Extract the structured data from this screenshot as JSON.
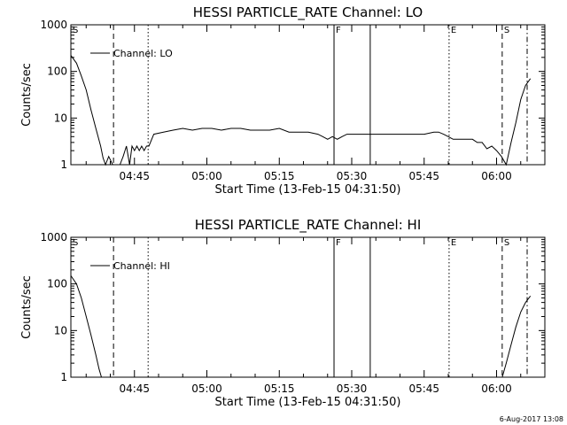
{
  "footer_stamp": "6-Aug-2017 13:08",
  "chart_data": [
    {
      "type": "line",
      "title": "HESSI PARTICLE_RATE Channel: LO",
      "xlabel": "Start Time (13-Feb-15 04:31:50)",
      "ylabel": "Counts/sec",
      "yscale": "log",
      "ylim": [
        1,
        1000
      ],
      "xlim": [
        "04:31:50",
        "06:10:00"
      ],
      "x_ticks": [
        "04:45",
        "05:00",
        "05:15",
        "05:30",
        "05:45",
        "06:00"
      ],
      "y_ticks": [
        "1",
        "10",
        "100",
        "1000"
      ],
      "legend": {
        "label": "Channel: LO",
        "position": "top-left"
      },
      "series": [
        {
          "name": "Channel: LO",
          "x": [
            "04:31:50",
            "04:33:00",
            "04:34:00",
            "04:35:00",
            "04:36:00",
            "04:37:00",
            "04:38:00",
            "04:38:30",
            "04:39:00",
            "04:39:40",
            "04:40:30",
            "04:41:30",
            "04:42:00",
            "04:42:40",
            "04:43:20",
            "04:44:00",
            "04:44:30",
            "04:45:00",
            "04:45:30",
            "04:46:00",
            "04:46:30",
            "04:47:00",
            "04:47:30",
            "04:48:00",
            "04:49:00",
            "04:51:00",
            "04:53:00",
            "04:55:00",
            "04:57:00",
            "04:59:00",
            "05:01:00",
            "05:03:00",
            "05:05:00",
            "05:07:00",
            "05:09:00",
            "05:11:00",
            "05:13:00",
            "05:15:00",
            "05:17:00",
            "05:19:00",
            "05:21:00",
            "05:23:00",
            "05:24:00",
            "05:25:00",
            "05:26:00",
            "05:27:00",
            "05:28:00",
            "05:29:00",
            "05:31:00",
            "05:33:00",
            "05:35:00",
            "05:37:00",
            "05:39:00",
            "05:41:00",
            "05:43:00",
            "05:45:00",
            "05:47:00",
            "05:48:00",
            "05:49:00",
            "05:50:00",
            "05:51:00",
            "05:52:00",
            "05:53:00",
            "05:54:00",
            "05:55:00",
            "05:56:00",
            "05:57:00",
            "05:58:00",
            "05:59:00",
            "06:00:00",
            "06:01:00",
            "06:02:00",
            "06:03:00",
            "06:04:00",
            "06:05:00",
            "06:06:00",
            "06:07:00"
          ],
          "y": [
            220,
            150,
            80,
            40,
            15,
            6,
            2.5,
            1.4,
            1,
            1.5,
            1,
            1,
            1,
            1.5,
            2.5,
            1,
            2.5,
            2,
            2.5,
            2,
            2.5,
            2,
            2.5,
            2.5,
            4.5,
            5,
            5.5,
            6,
            5.5,
            6,
            6,
            5.5,
            6,
            6,
            5.5,
            5.5,
            5.5,
            6,
            5,
            5,
            5,
            4.5,
            4,
            3.5,
            4,
            3.5,
            4,
            4.5,
            4.5,
            4.5,
            4.5,
            4.5,
            4.5,
            4.5,
            4.5,
            4.5,
            5,
            5,
            4.5,
            4,
            3.5,
            3.5,
            3.5,
            3.5,
            3.5,
            3,
            3,
            2.2,
            2.5,
            2,
            1.5,
            1,
            3,
            8,
            25,
            50,
            70
          ]
        }
      ],
      "markers": [
        {
          "label": "S",
          "at": "04:31:50",
          "style": "label"
        },
        {
          "label": "",
          "at": "04:40:40",
          "style": "dashed"
        },
        {
          "label": "",
          "at": "04:47:50",
          "style": "dotted"
        },
        {
          "label": "F",
          "at": "05:26:20",
          "style": "solid"
        },
        {
          "label": "",
          "at": "05:33:50",
          "style": "solid"
        },
        {
          "label": "E",
          "at": "05:50:10",
          "style": "dotted"
        },
        {
          "label": "S",
          "at": "06:01:10",
          "style": "dashed"
        },
        {
          "label": "",
          "at": "06:06:20",
          "style": "dashdot"
        }
      ]
    },
    {
      "type": "line",
      "title": "HESSI PARTICLE_RATE Channel: HI",
      "xlabel": "Start Time (13-Feb-15 04:31:50)",
      "ylabel": "Counts/sec",
      "yscale": "log",
      "ylim": [
        1,
        1000
      ],
      "xlim": [
        "04:31:50",
        "06:10:00"
      ],
      "x_ticks": [
        "04:45",
        "05:00",
        "05:15",
        "05:30",
        "05:45",
        "06:00"
      ],
      "y_ticks": [
        "1",
        "10",
        "100",
        "1000"
      ],
      "legend": {
        "label": "Channel: HI",
        "position": "top-left"
      },
      "series": [
        {
          "name": "Channel: HI",
          "x": [
            "04:31:50",
            "04:33:00",
            "04:34:00",
            "04:35:00",
            "04:36:00",
            "04:37:00",
            "04:37:40",
            "04:38:10",
            "06:01:10",
            "06:02:00",
            "06:03:00",
            "06:04:00",
            "06:05:00",
            "06:06:00",
            "06:07:00"
          ],
          "y": [
            150,
            100,
            50,
            20,
            8,
            3,
            1.5,
            1,
            1,
            2,
            5,
            12,
            25,
            40,
            55
          ],
          "segments": [
            [
              0,
              7
            ],
            [
              8,
              14
            ]
          ]
        }
      ],
      "markers": [
        {
          "label": "S",
          "at": "04:31:50",
          "style": "label"
        },
        {
          "label": "",
          "at": "04:40:40",
          "style": "dashed"
        },
        {
          "label": "",
          "at": "04:47:50",
          "style": "dotted"
        },
        {
          "label": "F",
          "at": "05:26:20",
          "style": "solid"
        },
        {
          "label": "",
          "at": "05:33:50",
          "style": "solid"
        },
        {
          "label": "E",
          "at": "05:50:10",
          "style": "dotted"
        },
        {
          "label": "S",
          "at": "06:01:10",
          "style": "dashed"
        },
        {
          "label": "",
          "at": "06:06:20",
          "style": "dashdot"
        }
      ]
    }
  ]
}
